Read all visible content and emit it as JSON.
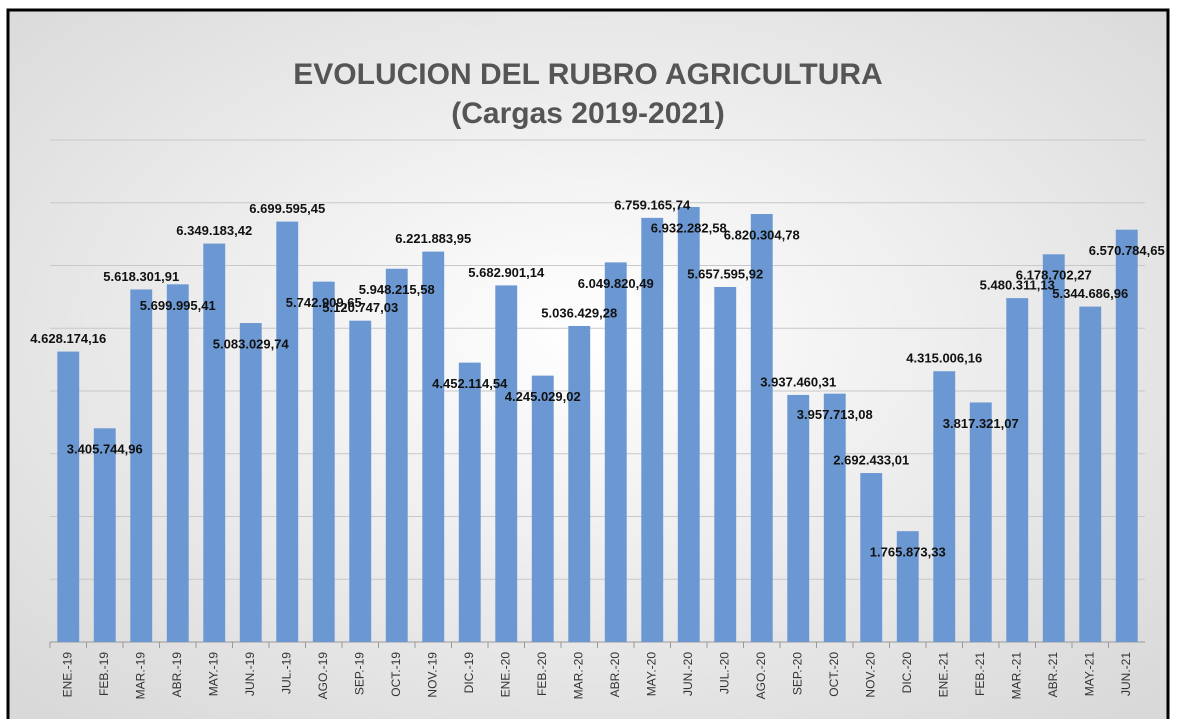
{
  "chart_data": {
    "type": "bar",
    "title": "EVOLUCION DEL RUBRO AGRICULTURA",
    "subtitle": "(Cargas 2019-2021)",
    "categories": [
      "ENE.-19",
      "FEB.-19",
      "MAR.-19",
      "ABR.-19",
      "MAY.-19",
      "JUN.-19",
      "JUL.-19",
      "AGO.-19",
      "SEP.-19",
      "OCT.-19",
      "NOV.-19",
      "DIC.-19",
      "ENE.-20",
      "FEB.-20",
      "MAR.-20",
      "ABR.-20",
      "MAY.-20",
      "JUN.-20",
      "JUL.-20",
      "AGO.-20",
      "SEP.-20",
      "OCT.-20",
      "NOV.-20",
      "DIC.-20",
      "ENE.-21",
      "FEB.-21",
      "MAR.-21",
      "ABR.-21",
      "MAY.-21",
      "JUN.-21"
    ],
    "values": [
      4628174.16,
      3405744.96,
      5618301.91,
      5699995.41,
      6349183.42,
      5083029.74,
      6699595.45,
      5742909.65,
      5120747.03,
      5948215.58,
      6221883.95,
      4452114.54,
      5682901.14,
      4245029.02,
      5036429.28,
      6049820.49,
      6759165.74,
      6932282.58,
      5657595.92,
      6820304.78,
      3937460.31,
      3957713.08,
      2692433.01,
      1765873.33,
      4315006.16,
      3817321.07,
      5480311.13,
      6178702.27,
      5344686.96,
      6570784.65
    ],
    "value_labels": [
      "4.628.174,16",
      "3.405.744,96",
      "5.618.301,91",
      "5.699.995,41",
      "6.349.183,42",
      "5.083.029,74",
      "6.699.595,45",
      "5.742.909,65",
      "5.120.747,03",
      "5.948.215,58",
      "6.221.883,95",
      "4.452.114,54",
      "5.682.901,14",
      "4.245.029,02",
      "5.036.429,28",
      "6.049.820,49",
      "6.759.165,74",
      "6.932.282,58",
      "5.657.595,92",
      "6.820.304,78",
      "3.937.460,31",
      "3.957.713,08",
      "2.692.433,01",
      "1.765.873,33",
      "4.315.006,16",
      "3.817.321,07",
      "5.480.311,13",
      "6.178.702,27",
      "5.344.686,96",
      "6.570.784,65"
    ],
    "color": "#6b98d2",
    "ylim": [
      0,
      8000000
    ],
    "yticks": [
      0,
      1000000,
      2000000,
      3000000,
      4000000,
      5000000,
      6000000,
      7000000,
      8000000
    ],
    "grid": true
  }
}
